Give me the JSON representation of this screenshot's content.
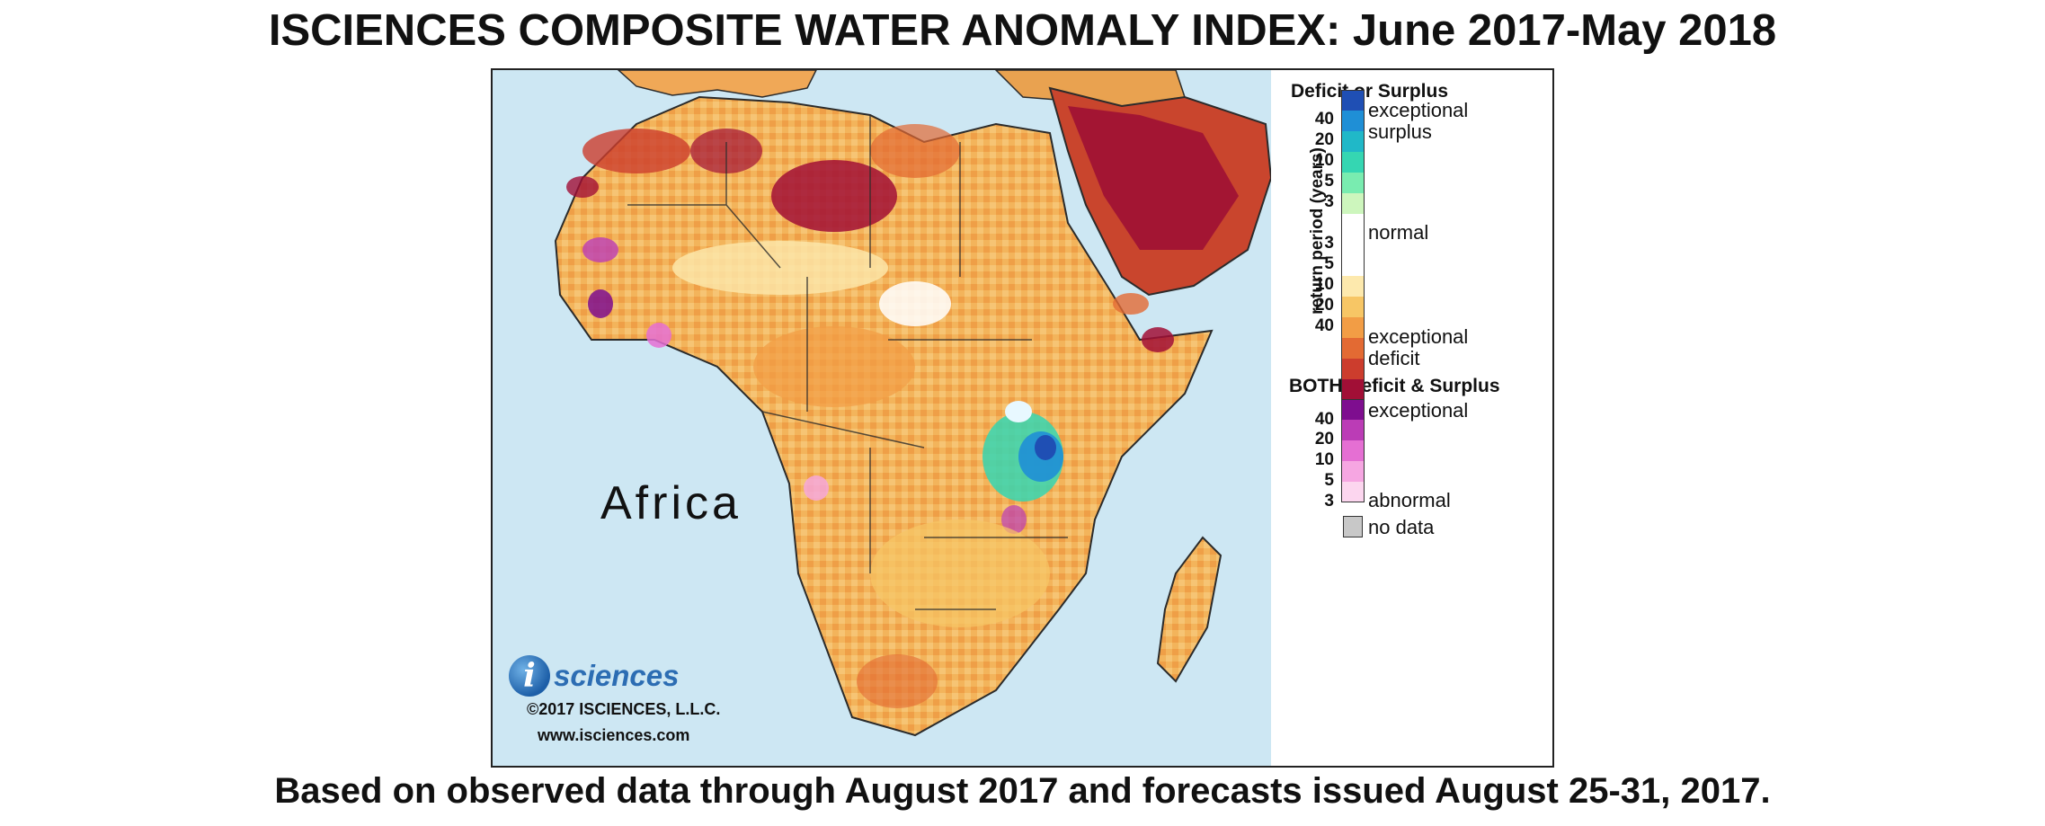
{
  "title": "ISCIENCES COMPOSITE WATER ANOMALY INDEX: June 2017-May 2018",
  "footer": "Based on observed data through August 2017 and forecasts issued August 25-31, 2017.",
  "map": {
    "region_label": "Africa",
    "logo_letter": "i",
    "logo_text": "sciences",
    "copyright": "©2017 ISCIENCES, L.L.C.",
    "website": "www.isciences.com",
    "colors": {
      "ocean": "#cde7f3",
      "land_base": "#f2b35c",
      "border": "#2b2b2b"
    }
  },
  "legend": {
    "section1_title": "Deficit or Surplus",
    "axis_label": "return period (years)",
    "surplus_ticks": [
      "40",
      "20",
      "10",
      "5",
      "3"
    ],
    "deficit_ticks": [
      "3",
      "5",
      "10",
      "20",
      "40"
    ],
    "surplus_colors": [
      "#1f4fb4",
      "#1f8fd6",
      "#20b8c8",
      "#35d6b2",
      "#79ecb0",
      "#cdf6bd"
    ],
    "normal_color": "#ffffff",
    "deficit_colors": [
      "#fde9ad",
      "#f7c665",
      "#f29d45",
      "#e36a33",
      "#cc3d2d",
      "#a10f36"
    ],
    "labels": {
      "exceptional_surplus_1": "exceptional",
      "exceptional_surplus_2": "surplus",
      "normal": "normal",
      "exceptional_deficit_1": "exceptional",
      "exceptional_deficit_2": "deficit"
    },
    "section2_title": "BOTH Deficit & Surplus",
    "both_ticks": [
      "40",
      "20",
      "10",
      "5",
      "3"
    ],
    "both_colors": [
      "#7e0e8f",
      "#bb3cb6",
      "#e56fd3",
      "#f6a6e2",
      "#fcd6ef"
    ],
    "both_labels": {
      "exceptional": "exceptional",
      "abnormal": "abnormal"
    },
    "no_data_label": "no data",
    "no_data_color": "#c8c8c8"
  }
}
